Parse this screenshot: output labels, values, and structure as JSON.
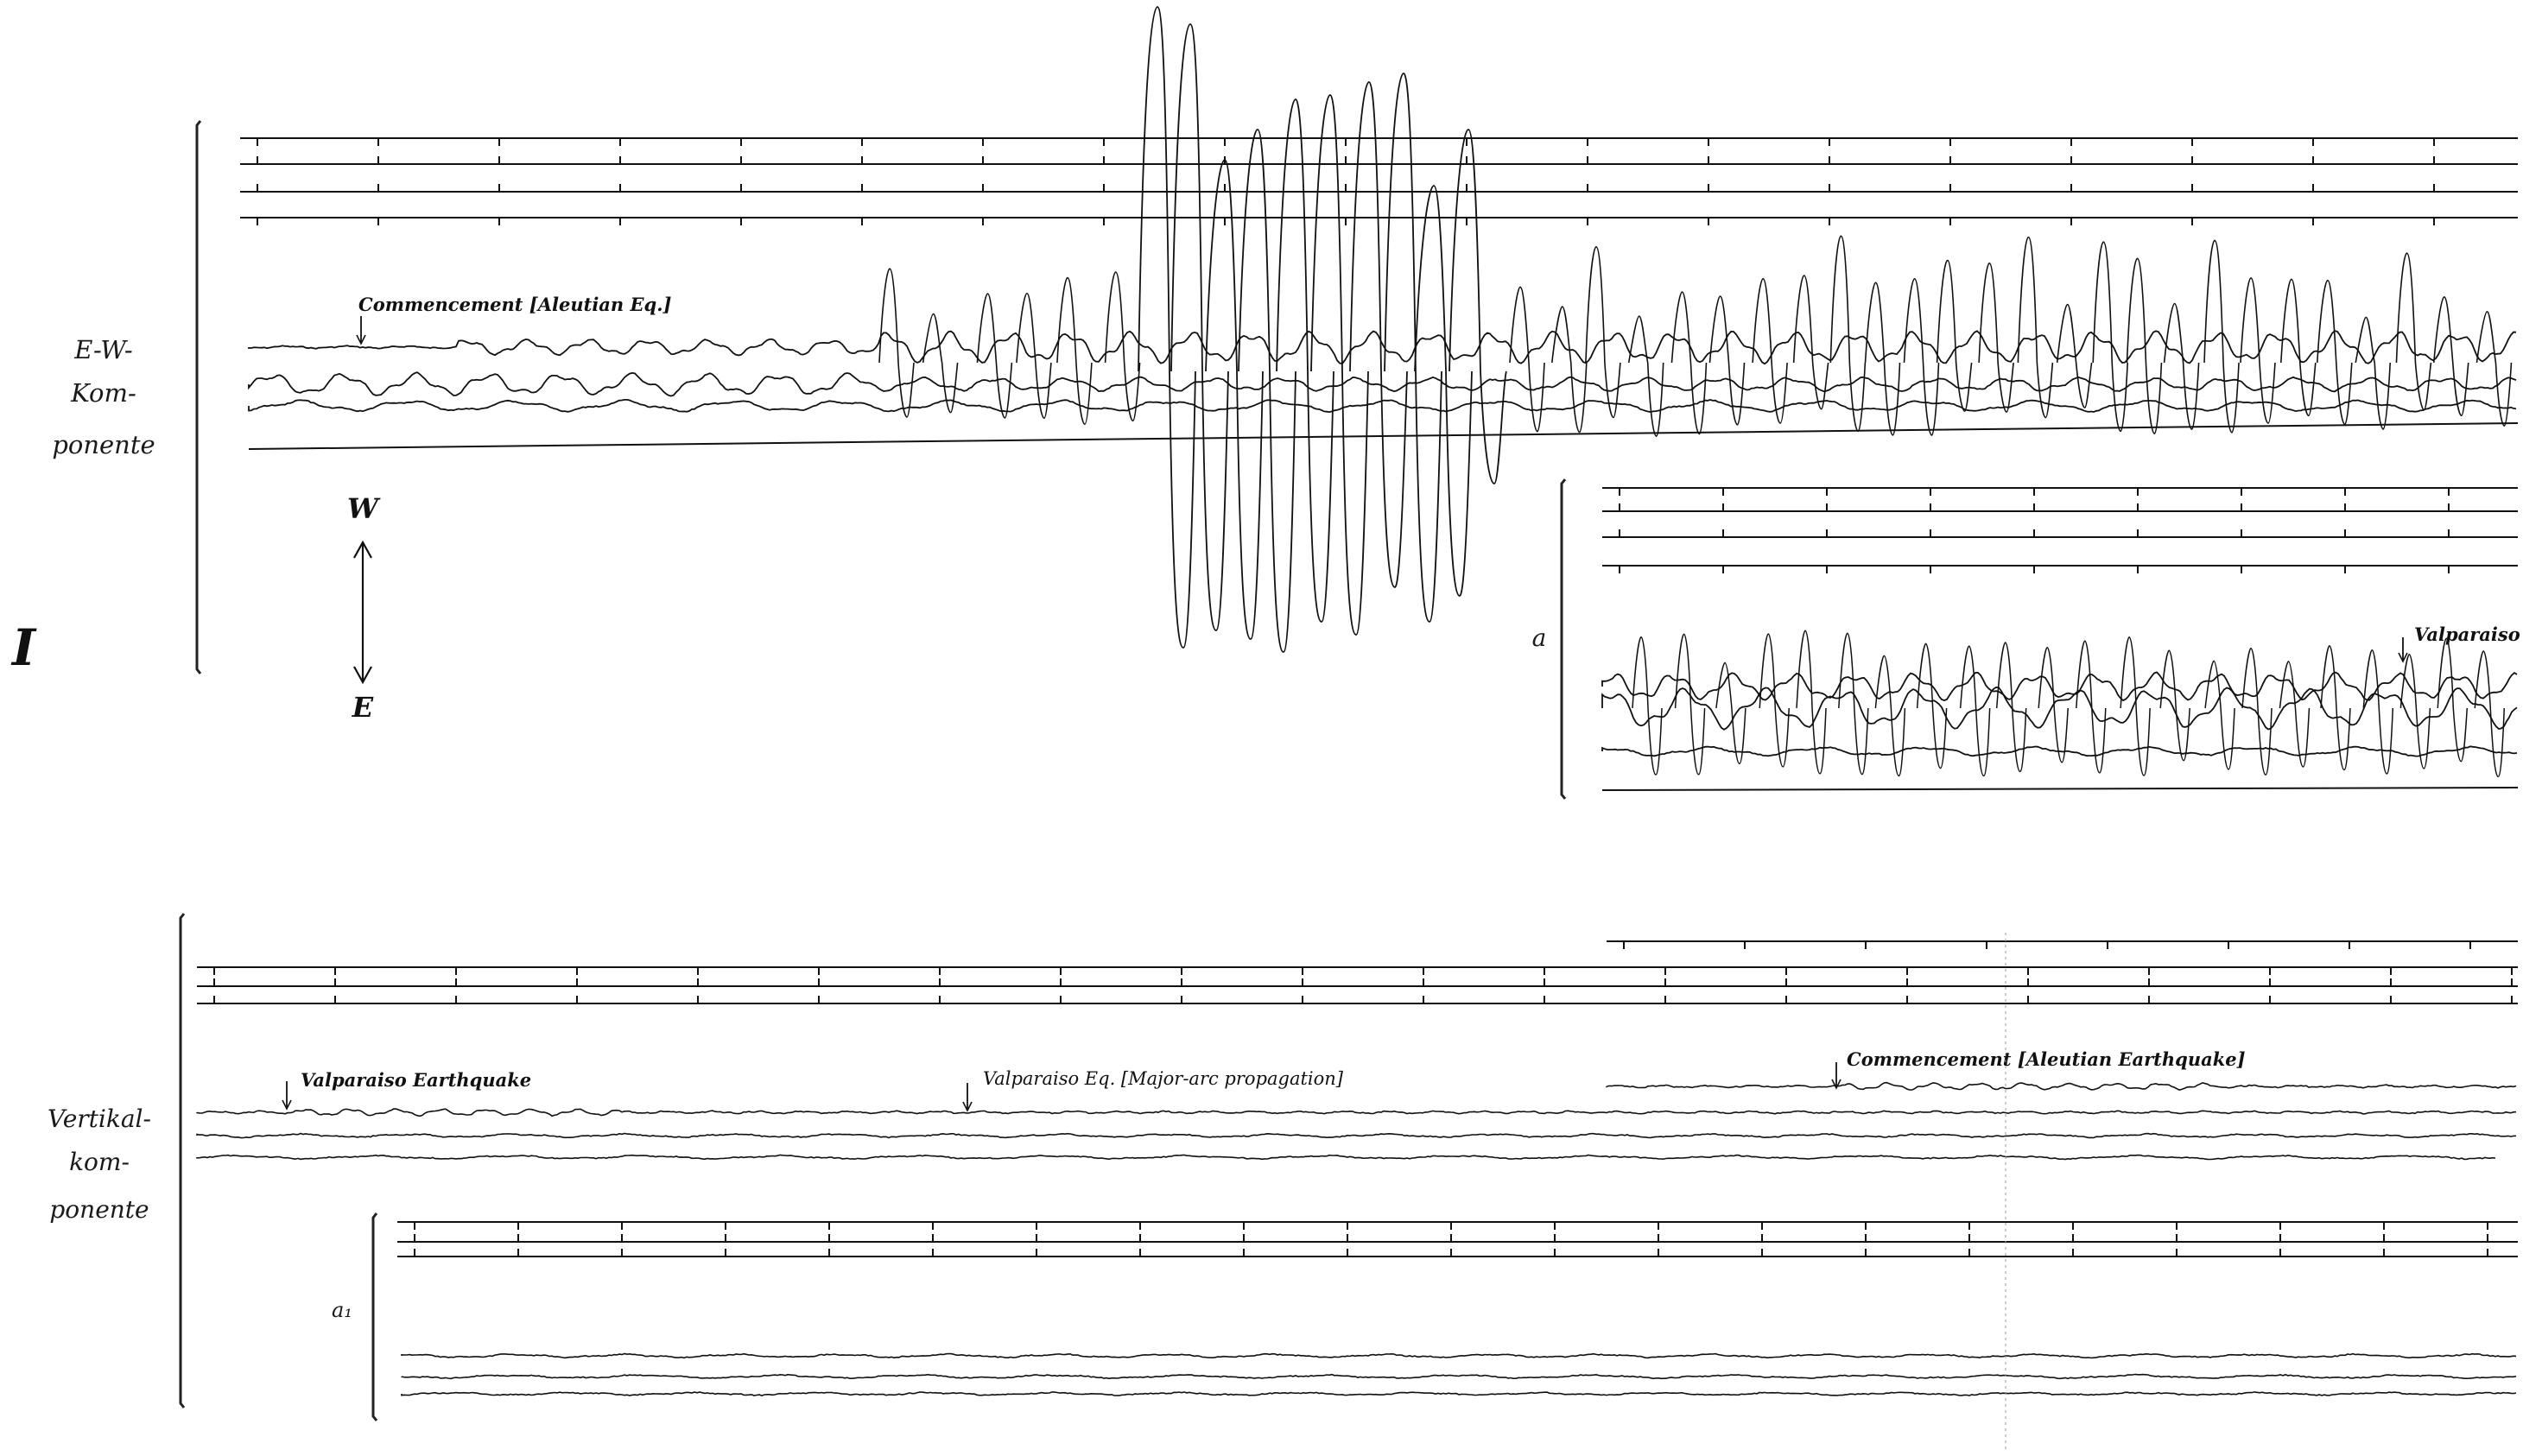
{
  "plate_number": "I",
  "ew_panel": {
    "component_label": [
      "E-W-",
      "Kom-",
      "ponente"
    ],
    "direction_top": "W",
    "direction_bottom": "E",
    "annotation": "Commencement [Aleutian Eq.]"
  },
  "inset_a": {
    "label": "a",
    "annotation": "Valparaiso"
  },
  "vertical_panel": {
    "component_label": [
      "Vertikal-",
      "kom-",
      "ponente"
    ],
    "annotations": [
      "Valparaiso Earthquake",
      "Valparaiso Eq. [Major-arc propagation]",
      "Commencement [Aleutian Earthquake]"
    ]
  },
  "inset_a1": {
    "label": "a₁"
  }
}
